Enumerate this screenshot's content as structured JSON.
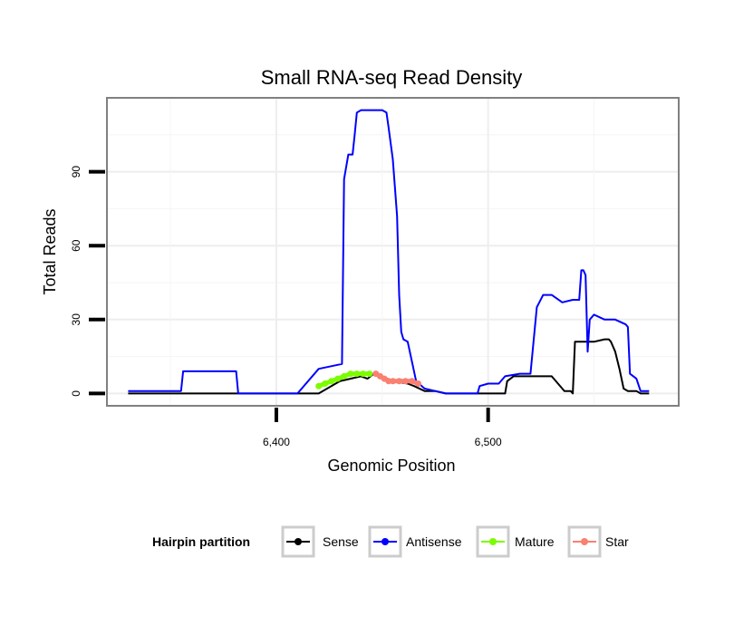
{
  "chart_data": {
    "type": "line",
    "title": "Small RNA-seq Read Density",
    "xlabel": "Genomic Position",
    "ylabel": "Total Reads",
    "xlim": [
      6320,
      6590
    ],
    "ylim": [
      -5,
      120
    ],
    "xticks": [
      6400,
      6500
    ],
    "xtick_labels": [
      "6,400",
      "6,500"
    ],
    "yticks": [
      0,
      30,
      60,
      90
    ],
    "ytick_labels": [
      "0",
      "30",
      "60",
      "90"
    ],
    "grid": true,
    "legend_position": "bottom",
    "legend": {
      "title": "Hairpin partition",
      "entries": [
        "Sense",
        "Antisense",
        "Mature",
        "Star"
      ]
    },
    "colors": {
      "Sense": "#000000",
      "Antisense": "#0000ff",
      "Mature": "#7cfc00",
      "Star": "#fa8072"
    },
    "series": [
      {
        "name": "Sense",
        "x": [
          6330,
          6365,
          6395,
          6419,
          6420,
          6430,
          6440,
          6443,
          6446,
          6450,
          6455,
          6462,
          6465,
          6470,
          6475,
          6480,
          6500,
          6508,
          6509,
          6512,
          6516,
          6520,
          6525,
          6530,
          6535,
          6536,
          6539,
          6540,
          6541,
          6545,
          6550,
          6555,
          6557,
          6558,
          6560,
          6562,
          6564,
          6566,
          6570,
          6572,
          6576
        ],
        "y": [
          0,
          0,
          0,
          0,
          0,
          5,
          7,
          6,
          8,
          7,
          5,
          4,
          3,
          1,
          1,
          0,
          0,
          0,
          5,
          7,
          7,
          7,
          7,
          7,
          2,
          1,
          1,
          0,
          21,
          21,
          21,
          22,
          22,
          21,
          17,
          10,
          2,
          1,
          1,
          0,
          0
        ]
      },
      {
        "name": "Antisense",
        "x": [
          6330,
          6355,
          6356,
          6381,
          6382,
          6400,
          6410,
          6420,
          6431,
          6432,
          6434,
          6436,
          6437,
          6438,
          6440,
          6445,
          6450,
          6452,
          6453,
          6455,
          6457,
          6458,
          6459,
          6460,
          6462,
          6465,
          6466,
          6470,
          6475,
          6480,
          6495,
          6496,
          6500,
          6505,
          6508,
          6515,
          6520,
          6523,
          6526,
          6530,
          6535,
          6540,
          6543,
          6544,
          6545,
          6546,
          6547,
          6548,
          6550,
          6555,
          6560,
          6565,
          6566,
          6567,
          6570,
          6572,
          6576
        ],
        "y": [
          1,
          1,
          9,
          9,
          0,
          0,
          0,
          10,
          12,
          87,
          97,
          97,
          105,
          114,
          115,
          115,
          115,
          114,
          108,
          95,
          72,
          40,
          25,
          22,
          21,
          9,
          5,
          2,
          1,
          0,
          0,
          3,
          4,
          4,
          7,
          8,
          8,
          35,
          40,
          40,
          37,
          38,
          38,
          50,
          50,
          48,
          17,
          30,
          32,
          30,
          30,
          28,
          27,
          8,
          6,
          1,
          1
        ]
      },
      {
        "name": "Mature",
        "x": [
          6420,
          6423,
          6426,
          6429,
          6432,
          6435,
          6438,
          6441,
          6444
        ],
        "y": [
          3,
          4,
          5,
          6,
          7,
          8,
          8,
          8,
          8
        ]
      },
      {
        "name": "Star",
        "x": [
          6447,
          6449,
          6451,
          6453,
          6455,
          6458,
          6461,
          6464,
          6467
        ],
        "y": [
          8,
          7,
          6,
          5,
          5,
          5,
          5,
          5,
          4
        ]
      }
    ]
  }
}
